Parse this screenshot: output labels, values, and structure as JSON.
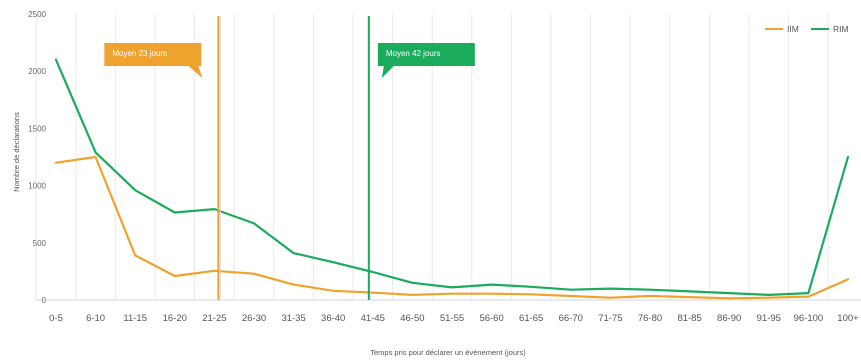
{
  "chart_data": {
    "type": "line",
    "xlabel": "Temps pris pour déclarer un évènement (jours)",
    "ylabel": "Nombre de déclarations",
    "ylim": [
      0,
      2500
    ],
    "yticks": [
      0,
      500,
      1000,
      1500,
      2000,
      2500
    ],
    "grid": "vertical",
    "legend_position": "top-right",
    "categories": [
      "0-5",
      "6-10",
      "11-15",
      "16-20",
      "21-25",
      "26-30",
      "31-35",
      "36-40",
      "41-45",
      "46-50",
      "51-55",
      "56-60",
      "61-65",
      "66-70",
      "71-75",
      "76-80",
      "81-85",
      "86-90",
      "91-95",
      "96-100",
      "100+"
    ],
    "series": [
      {
        "name": "IIM",
        "color": "#f0a22e",
        "values": [
          1200,
          1250,
          390,
          210,
          255,
          230,
          135,
          80,
          65,
          45,
          55,
          55,
          50,
          35,
          20,
          35,
          25,
          15,
          20,
          30,
          180
        ]
      },
      {
        "name": "RIM",
        "color": "#1bab5d",
        "values": [
          2100,
          1290,
          960,
          765,
          795,
          670,
          410,
          330,
          245,
          150,
          110,
          135,
          115,
          90,
          100,
          90,
          75,
          60,
          45,
          60,
          1250
        ]
      }
    ],
    "annotations": [
      {
        "text": "Moyen 23 jours",
        "x": 23,
        "series": "IIM",
        "color": "#f0a22e"
      },
      {
        "text": "Moyen 42 jours",
        "x": 42,
        "series": "RIM",
        "color": "#1bab5d"
      }
    ]
  }
}
